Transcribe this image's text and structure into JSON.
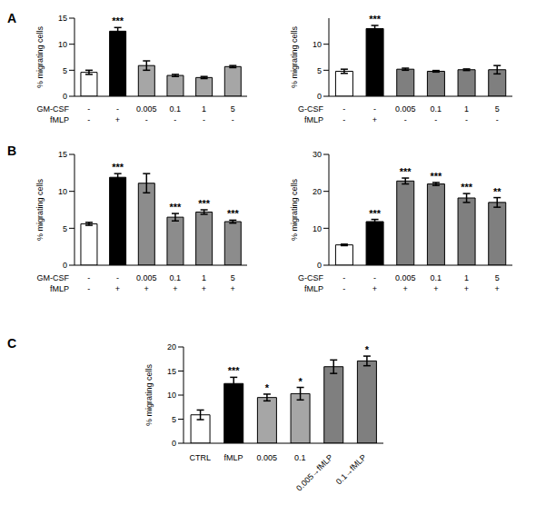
{
  "chart_data": [
    {
      "type": "bar",
      "panel_label": "A",
      "y_label": "% migrating cells",
      "ylim": [
        0,
        15
      ],
      "yticks": [
        0,
        5,
        10,
        15
      ],
      "table_rows": [
        {
          "label": "GM-CSF",
          "values": [
            "-",
            "-",
            "0.005",
            "0.1",
            "1",
            "5"
          ]
        },
        {
          "label": "fMLP",
          "values": [
            "-",
            "+",
            "-",
            "-",
            "-",
            "-"
          ]
        }
      ],
      "values": [
        4.6,
        12.5,
        5.9,
        4.0,
        3.6,
        5.7
      ],
      "errors": [
        0.4,
        0.7,
        0.9,
        0.2,
        0.2,
        0.2
      ],
      "significance": [
        null,
        "***",
        null,
        null,
        null,
        null
      ],
      "colors": [
        "#ffffff",
        "#000000",
        "#a6a6a6",
        "#a6a6a6",
        "#a6a6a6",
        "#a6a6a6"
      ]
    },
    {
      "type": "bar",
      "y_label": "% migrating cells",
      "ylim": [
        0,
        15
      ],
      "yticks": [
        0,
        5,
        10
      ],
      "table_rows": [
        {
          "label": "G-CSF",
          "values": [
            "-",
            "-",
            "0.005",
            "0.1",
            "1",
            "5"
          ]
        },
        {
          "label": "fMLP",
          "values": [
            "-",
            "+",
            "-",
            "-",
            "-",
            "-"
          ]
        }
      ],
      "values": [
        4.8,
        13.0,
        5.2,
        4.8,
        5.1,
        5.1
      ],
      "errors": [
        0.4,
        0.6,
        0.2,
        0.15,
        0.15,
        0.8
      ],
      "significance": [
        null,
        "***",
        null,
        null,
        null,
        null
      ],
      "colors": [
        "#ffffff",
        "#000000",
        "#7f7f7f",
        "#7f7f7f",
        "#7f7f7f",
        "#7f7f7f"
      ]
    },
    {
      "type": "bar",
      "panel_label": "B",
      "y_label": "% migrating cells",
      "ylim": [
        0,
        15
      ],
      "yticks": [
        0,
        5,
        10,
        15
      ],
      "table_rows": [
        {
          "label": "GM-CSF",
          "values": [
            "-",
            "-",
            "0.005",
            "0.1",
            "1",
            "5"
          ]
        },
        {
          "label": "fMLP",
          "values": [
            "-",
            "+",
            "+",
            "+",
            "+",
            "+"
          ]
        }
      ],
      "values": [
        5.6,
        11.9,
        11.1,
        6.5,
        7.2,
        5.9
      ],
      "errors": [
        0.2,
        0.5,
        1.3,
        0.5,
        0.3,
        0.2
      ],
      "significance": [
        null,
        "***",
        null,
        "***",
        "***",
        "***"
      ],
      "colors": [
        "#ffffff",
        "#000000",
        "#8c8c8c",
        "#8c8c8c",
        "#8c8c8c",
        "#8c8c8c"
      ]
    },
    {
      "type": "bar",
      "y_label": "% migrating cells",
      "ylim": [
        0,
        30
      ],
      "yticks": [
        0,
        10,
        20,
        30
      ],
      "table_rows": [
        {
          "label": "G-CSF",
          "values": [
            "-",
            "-",
            "0.005",
            "0.1",
            "1",
            "5"
          ]
        },
        {
          "label": "fMLP",
          "values": [
            "-",
            "+",
            "+",
            "+",
            "+",
            "+"
          ]
        }
      ],
      "values": [
        5.5,
        11.8,
        22.8,
        22.0,
        18.2,
        17.0
      ],
      "errors": [
        0.2,
        0.6,
        0.8,
        0.4,
        1.2,
        1.3
      ],
      "significance": [
        null,
        "***",
        "***",
        "***",
        "***",
        "**"
      ],
      "colors": [
        "#ffffff",
        "#000000",
        "#7f7f7f",
        "#7f7f7f",
        "#7f7f7f",
        "#7f7f7f"
      ]
    },
    {
      "type": "bar",
      "panel_label": "C",
      "y_label": "% migrating cells",
      "ylim": [
        0,
        20
      ],
      "yticks": [
        0,
        5,
        10,
        15,
        20
      ],
      "categories": [
        "CTRL",
        "fMLP",
        "0.005",
        "0.1",
        "0.005→fMLP",
        "0.1→fMLP"
      ],
      "values": [
        5.9,
        12.4,
        9.5,
        10.3,
        15.9,
        17.1
      ],
      "errors": [
        1.0,
        1.3,
        0.7,
        1.3,
        1.4,
        1.0
      ],
      "significance": [
        null,
        "***",
        "*",
        "*",
        null,
        "*"
      ],
      "colors": [
        "#ffffff",
        "#000000",
        "#a6a6a6",
        "#a6a6a6",
        "#7f7f7f",
        "#7f7f7f"
      ]
    }
  ]
}
